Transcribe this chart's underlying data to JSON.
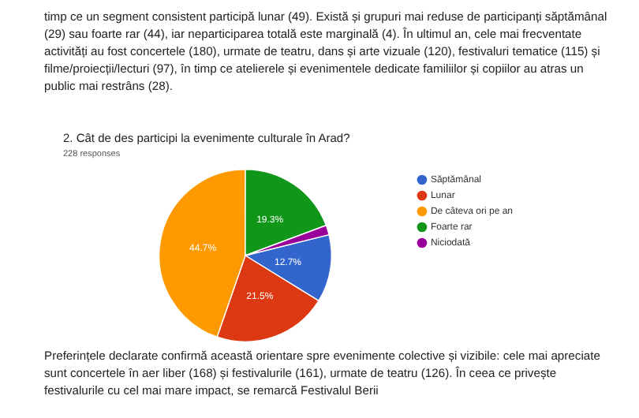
{
  "chart_data": {
    "type": "pie",
    "title": "2. Cât de des participi la evenimente culturale în Arad?",
    "subtitle": "228 responses",
    "categories": [
      "Săptămânal",
      "Lunar",
      "De câteva ori pe an",
      "Foarte rar",
      "Niciodată"
    ],
    "values": [
      12.7,
      21.5,
      44.7,
      19.3,
      1.8
    ],
    "colors": [
      "#3366cc",
      "#dc3912",
      "#ff9900",
      "#109618",
      "#990099"
    ],
    "value_labels": [
      "12.7%",
      "21.5%",
      "44.7%",
      "19.3%",
      null
    ],
    "legend": "right",
    "annotations": [
      "timp ce un segment consistent participă lunar (49). Există și grupuri mai reduse de participanți săptămânal (29) sau foarte rar (44), iar neparticiparea totală este marginală (4). În ultimul an, cele mai frecventate activități au fost concertele (180), urmate de teatru, dans și arte vizuale (120), festivaluri tematice (115) și filme/proiecții/lecturi (97), în timp ce atelierele și evenimentele dedicate familiilor și copiilor au atras un public mai restrâns (28).",
      "Preferințele declarate confirmă această orientare spre evenimente colective și vizibile: cele mai apreciate sunt concertele în aer liber (168) și festivalurile (161), urmate de teatru (126). În ceea ce privește festivalurile cu cel mai mare impact, se remarcă Festivalul Berii"
    ]
  }
}
